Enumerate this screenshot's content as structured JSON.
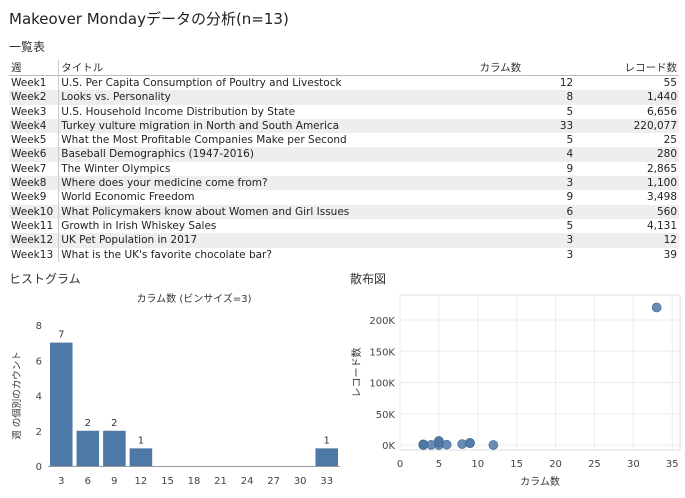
{
  "title": "Makeover Mondayデータの分析(n=13)",
  "table_section": "一覧表",
  "table": {
    "headers": {
      "week": "週",
      "title": "タイトル",
      "columns": "カラム数",
      "records": "レコード数"
    },
    "rows": [
      {
        "week": "Week1",
        "title": "U.S. Per Capita Consumption of Poultry and Livestock",
        "columns": "12",
        "records": "55"
      },
      {
        "week": "Week2",
        "title": "Looks vs. Personality",
        "columns": "8",
        "records": "1,440"
      },
      {
        "week": "Week3",
        "title": "U.S. Household Income Distribution by State",
        "columns": "5",
        "records": "6,656"
      },
      {
        "week": "Week4",
        "title": "Turkey vulture migration in North and South America",
        "columns": "33",
        "records": "220,077"
      },
      {
        "week": "Week5",
        "title": "What the Most Profitable Companies Make per Second",
        "columns": "5",
        "records": "25"
      },
      {
        "week": "Week6",
        "title": "Baseball Demographics (1947-2016)",
        "columns": "4",
        "records": "280"
      },
      {
        "week": "Week7",
        "title": "The Winter Olympics",
        "columns": "9",
        "records": "2,865"
      },
      {
        "week": "Week8",
        "title": "Where does your medicine come from?",
        "columns": "3",
        "records": "1,100"
      },
      {
        "week": "Week9",
        "title": "World Economic Freedom",
        "columns": "9",
        "records": "3,498"
      },
      {
        "week": "Week10",
        "title": "What Policymakers know about Women and Girl Issues",
        "columns": "6",
        "records": "560"
      },
      {
        "week": "Week11",
        "title": "Growth in Irish Whiskey Sales",
        "columns": "5",
        "records": "4,131"
      },
      {
        "week": "Week12",
        "title": "UK Pet Population in 2017",
        "columns": "3",
        "records": "12"
      },
      {
        "week": "Week13",
        "title": "What is the UK's favorite chocolate bar?",
        "columns": "3",
        "records": "39"
      }
    ]
  },
  "histogram_section": "ヒストグラム",
  "scatter_section": "散布図",
  "colors": {
    "bar": "#4e79a7",
    "point": "#4e79a7"
  },
  "chart_data": [
    {
      "type": "bar",
      "title": "カラム数 (ビンサイズ=3)",
      "xlabel": "",
      "ylabel": "週 の個別のカウント",
      "categories": [
        "3",
        "6",
        "9",
        "12",
        "15",
        "18",
        "21",
        "24",
        "27",
        "30",
        "33"
      ],
      "values": [
        7,
        2,
        2,
        1,
        0,
        0,
        0,
        0,
        0,
        0,
        1
      ],
      "data_labels": [
        "7",
        "2",
        "2",
        "1",
        "",
        "",
        "",
        "",
        "",
        "",
        "1"
      ],
      "ylim": [
        0,
        8
      ],
      "yticks": [
        "0",
        "2",
        "4",
        "6",
        "8"
      ]
    },
    {
      "type": "scatter",
      "title": "",
      "xlabel": "カラム数",
      "ylabel": "レコード数",
      "x": [
        12,
        8,
        5,
        33,
        5,
        4,
        9,
        3,
        9,
        6,
        5,
        3,
        3
      ],
      "y": [
        55,
        1440,
        6656,
        220077,
        25,
        280,
        2865,
        1100,
        3498,
        560,
        4131,
        12,
        39
      ],
      "xlim": [
        0,
        36
      ],
      "ylim": [
        -8000,
        240000
      ],
      "xticks": [
        "0",
        "5",
        "10",
        "15",
        "20",
        "25",
        "30",
        "35"
      ],
      "yticks": [
        "0K",
        "50K",
        "100K",
        "150K",
        "200K"
      ],
      "grid": true
    }
  ]
}
